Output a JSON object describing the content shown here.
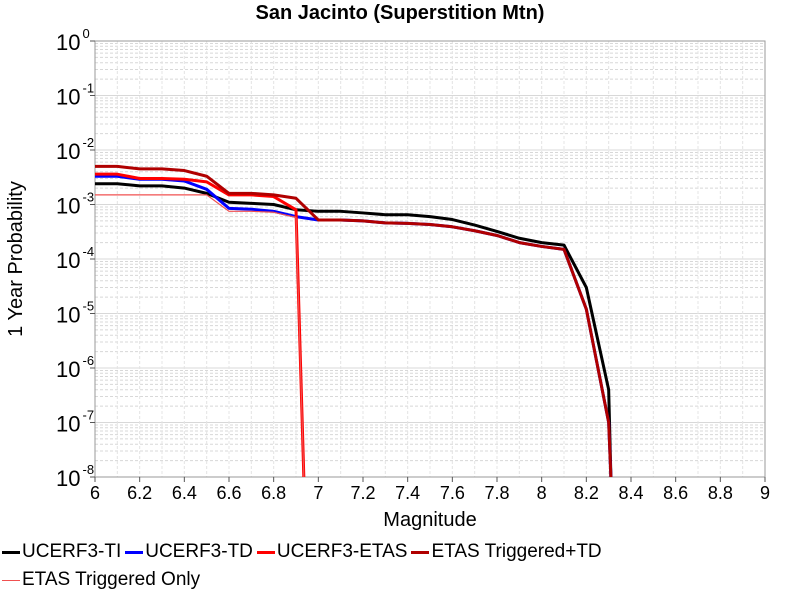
{
  "chart_data": {
    "type": "line",
    "title": "San Jacinto (Superstition Mtn)",
    "xlabel": "Magnitude",
    "ylabel": "1 Year Probability",
    "xlim": [
      6,
      9
    ],
    "ylim": [
      1e-08,
      1
    ],
    "y_scale": "log",
    "grid": true,
    "legend_position": "bottom",
    "x_ticks": [
      "6",
      "6.2",
      "6.4",
      "6.6",
      "6.8",
      "7",
      "7.2",
      "7.4",
      "7.6",
      "7.8",
      "8",
      "8.2",
      "8.4",
      "8.6",
      "8.8",
      "9"
    ],
    "y_ticks": [
      {
        "base": "10",
        "exp": "0"
      },
      {
        "base": "10",
        "exp": "-1"
      },
      {
        "base": "10",
        "exp": "-2"
      },
      {
        "base": "10",
        "exp": "-3"
      },
      {
        "base": "10",
        "exp": "-4"
      },
      {
        "base": "10",
        "exp": "-5"
      },
      {
        "base": "10",
        "exp": "-6"
      },
      {
        "base": "10",
        "exp": "-7"
      },
      {
        "base": "10",
        "exp": "-8"
      }
    ],
    "series": [
      {
        "name": "UCERF3-TI",
        "color": "#000000",
        "width": 3,
        "points": [
          [
            6.0,
            0.0024
          ],
          [
            6.1,
            0.0024
          ],
          [
            6.2,
            0.0022
          ],
          [
            6.3,
            0.0022
          ],
          [
            6.4,
            0.002
          ],
          [
            6.5,
            0.0016
          ],
          [
            6.6,
            0.0011
          ],
          [
            6.7,
            0.00105
          ],
          [
            6.8,
            0.001
          ],
          [
            6.9,
            0.0008
          ],
          [
            7.0,
            0.00075
          ],
          [
            7.1,
            0.00075
          ],
          [
            7.2,
            0.0007
          ],
          [
            7.3,
            0.00065
          ],
          [
            7.4,
            0.00065
          ],
          [
            7.5,
            0.0006
          ],
          [
            7.6,
            0.00053
          ],
          [
            7.7,
            0.00042
          ],
          [
            7.8,
            0.00032
          ],
          [
            7.9,
            0.00024
          ],
          [
            8.0,
            0.0002
          ],
          [
            8.1,
            0.00018
          ],
          [
            8.2,
            3e-05
          ],
          [
            8.3,
            4e-07
          ],
          [
            8.31,
            1e-08
          ]
        ]
      },
      {
        "name": "UCERF3-TD",
        "color": "#0000ff",
        "width": 3,
        "points": [
          [
            6.0,
            0.0033
          ],
          [
            6.1,
            0.0033
          ],
          [
            6.2,
            0.0029
          ],
          [
            6.3,
            0.0029
          ],
          [
            6.4,
            0.0027
          ],
          [
            6.5,
            0.0019
          ],
          [
            6.6,
            0.00085
          ],
          [
            6.7,
            0.00082
          ],
          [
            6.8,
            0.00075
          ],
          [
            6.9,
            0.0006
          ],
          [
            7.0,
            0.00052
          ],
          [
            7.1,
            0.00052
          ],
          [
            7.2,
            0.0005
          ],
          [
            7.3,
            0.00046
          ],
          [
            7.4,
            0.00045
          ],
          [
            7.5,
            0.00043
          ],
          [
            7.6,
            0.00039
          ],
          [
            7.7,
            0.00033
          ],
          [
            7.8,
            0.00027
          ],
          [
            7.9,
            0.0002
          ],
          [
            8.0,
            0.00017
          ],
          [
            8.1,
            0.00015
          ],
          [
            8.2,
            1.2e-05
          ],
          [
            8.3,
            1e-07
          ],
          [
            8.31,
            1e-08
          ]
        ]
      },
      {
        "name": "UCERF3-ETAS",
        "color": "#ff0000",
        "width": 3,
        "points": [
          [
            6.0,
            0.0036
          ],
          [
            6.1,
            0.0036
          ],
          [
            6.2,
            0.003
          ],
          [
            6.3,
            0.003
          ],
          [
            6.4,
            0.0029
          ],
          [
            6.5,
            0.0026
          ],
          [
            6.6,
            0.0015
          ],
          [
            6.7,
            0.0015
          ],
          [
            6.8,
            0.0014
          ],
          [
            6.9,
            0.0008
          ],
          [
            6.935,
            1e-08
          ]
        ]
      },
      {
        "name": "ETAS Triggered+TD",
        "color": "#b00000",
        "width": 3,
        "points": [
          [
            6.0,
            0.005
          ],
          [
            6.1,
            0.005
          ],
          [
            6.2,
            0.0045
          ],
          [
            6.3,
            0.0045
          ],
          [
            6.4,
            0.0042
          ],
          [
            6.5,
            0.0033
          ],
          [
            6.6,
            0.0016
          ],
          [
            6.7,
            0.0016
          ],
          [
            6.8,
            0.0015
          ],
          [
            6.9,
            0.0013
          ],
          [
            7.0,
            0.00052
          ],
          [
            7.1,
            0.00052
          ],
          [
            7.2,
            0.0005
          ],
          [
            7.3,
            0.00046
          ],
          [
            7.4,
            0.00045
          ],
          [
            7.5,
            0.00043
          ],
          [
            7.6,
            0.00039
          ],
          [
            7.7,
            0.00033
          ],
          [
            7.8,
            0.00027
          ],
          [
            7.9,
            0.0002
          ],
          [
            8.0,
            0.00017
          ],
          [
            8.1,
            0.00015
          ],
          [
            8.2,
            1.2e-05
          ],
          [
            8.3,
            1e-07
          ],
          [
            8.31,
            1e-08
          ]
        ]
      },
      {
        "name": "ETAS Triggered Only",
        "color": "#f05050",
        "width": 1.2,
        "points": [
          [
            6.0,
            0.0015
          ],
          [
            6.1,
            0.0015
          ],
          [
            6.2,
            0.0015
          ],
          [
            6.3,
            0.0015
          ],
          [
            6.4,
            0.0015
          ],
          [
            6.5,
            0.0015
          ],
          [
            6.6,
            0.00075
          ],
          [
            6.7,
            0.00075
          ],
          [
            6.8,
            0.00072
          ],
          [
            6.9,
            0.00058
          ],
          [
            6.935,
            1e-08
          ]
        ]
      }
    ]
  }
}
